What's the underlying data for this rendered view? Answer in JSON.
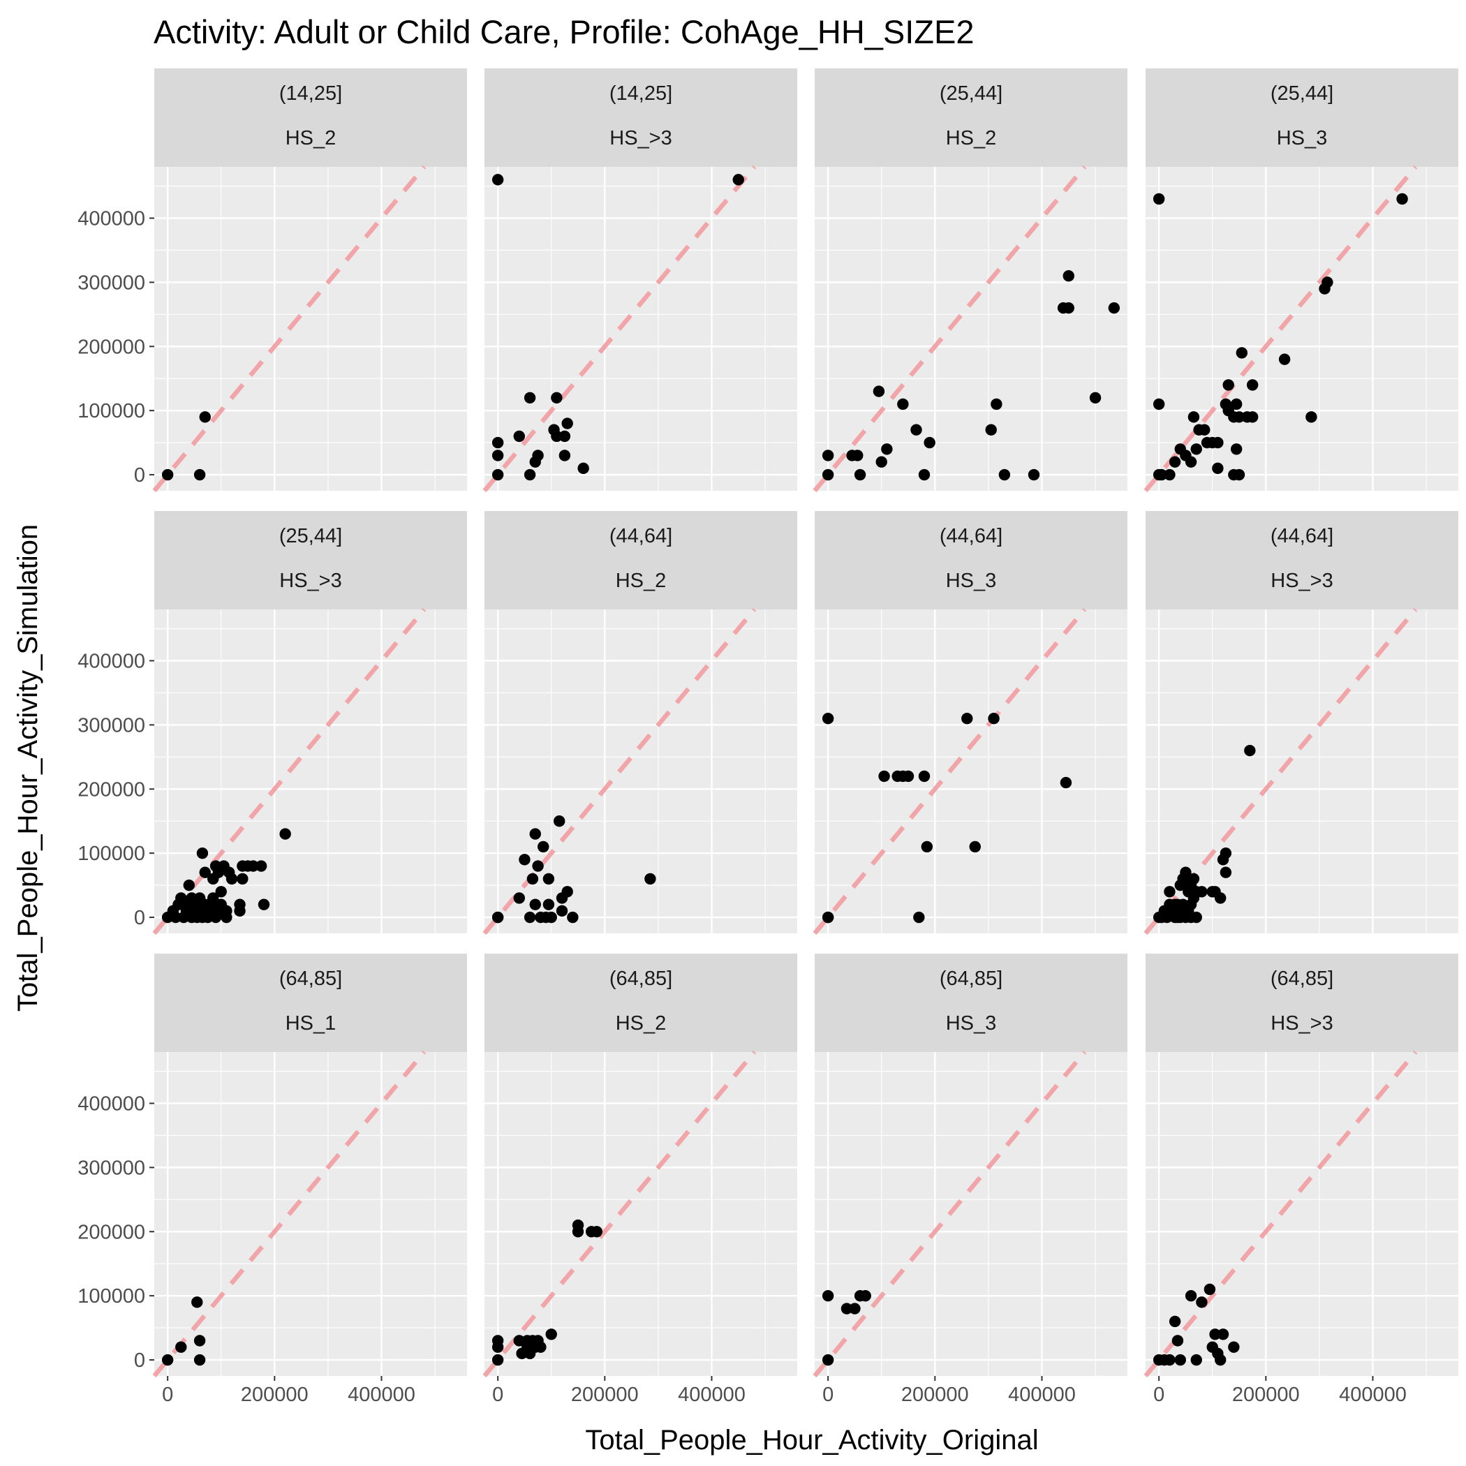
{
  "chart_data": {
    "type": "scatter",
    "title": "Activity: Adult or Child Care, Profile: CohAge_HH_SIZE2",
    "xlabel": "Total_People_Hour_Activity_Original",
    "ylabel": "Total_People_Hour_Activity_Simulation",
    "xlim": [
      -25000,
      560000
    ],
    "ylim": [
      -25000,
      480000
    ],
    "x_ticks": [
      0,
      200000,
      400000
    ],
    "x_tick_labels": [
      "0",
      "200000",
      "400000"
    ],
    "y_ticks": [
      0,
      100000,
      200000,
      300000,
      400000
    ],
    "y_tick_labels": [
      "0",
      "100000",
      "200000",
      "300000",
      "400000"
    ],
    "reference_line": "y = x",
    "reference_line_color": "#f1a5a8",
    "panel_background": "#ebebeb",
    "strip_background": "#d9d9d9",
    "point_color": "#000000",
    "grid": true,
    "legend": "none",
    "facets": [
      {
        "age": "(14,25]",
        "hh": "HS_2",
        "points": [
          [
            0,
            0
          ],
          [
            60000,
            0
          ],
          [
            70000,
            90000
          ]
        ]
      },
      {
        "age": "(14,25]",
        "hh": "HS_>3",
        "points": [
          [
            0,
            460000
          ],
          [
            450000,
            460000
          ],
          [
            0,
            50000
          ],
          [
            0,
            30000
          ],
          [
            0,
            0
          ],
          [
            40000,
            60000
          ],
          [
            60000,
            120000
          ],
          [
            110000,
            120000
          ],
          [
            60000,
            0
          ],
          [
            70000,
            20000
          ],
          [
            75000,
            30000
          ],
          [
            105000,
            70000
          ],
          [
            110000,
            60000
          ],
          [
            125000,
            60000
          ],
          [
            130000,
            80000
          ],
          [
            125000,
            30000
          ],
          [
            160000,
            10000
          ]
        ]
      },
      {
        "age": "(25,44]",
        "hh": "HS_2",
        "points": [
          [
            0,
            0
          ],
          [
            0,
            30000
          ],
          [
            45000,
            30000
          ],
          [
            55000,
            30000
          ],
          [
            60000,
            0
          ],
          [
            95000,
            130000
          ],
          [
            100000,
            20000
          ],
          [
            110000,
            40000
          ],
          [
            140000,
            110000
          ],
          [
            165000,
            70000
          ],
          [
            180000,
            0
          ],
          [
            190000,
            50000
          ],
          [
            305000,
            70000
          ],
          [
            315000,
            110000
          ],
          [
            330000,
            0
          ],
          [
            385000,
            0
          ],
          [
            440000,
            260000
          ],
          [
            450000,
            310000
          ],
          [
            450000,
            260000
          ],
          [
            500000,
            120000
          ],
          [
            535000,
            260000
          ]
        ]
      },
      {
        "age": "(25,44]",
        "hh": "HS_3",
        "points": [
          [
            0,
            430000
          ],
          [
            455000,
            430000
          ],
          [
            315000,
            300000
          ],
          [
            310000,
            290000
          ],
          [
            0,
            110000
          ],
          [
            0,
            0
          ],
          [
            5000,
            0
          ],
          [
            20000,
            0
          ],
          [
            30000,
            20000
          ],
          [
            40000,
            40000
          ],
          [
            50000,
            30000
          ],
          [
            60000,
            20000
          ],
          [
            65000,
            90000
          ],
          [
            70000,
            40000
          ],
          [
            75000,
            70000
          ],
          [
            85000,
            70000
          ],
          [
            90000,
            50000
          ],
          [
            100000,
            50000
          ],
          [
            110000,
            50000
          ],
          [
            110000,
            10000
          ],
          [
            125000,
            110000
          ],
          [
            130000,
            100000
          ],
          [
            130000,
            140000
          ],
          [
            140000,
            90000
          ],
          [
            140000,
            0
          ],
          [
            145000,
            40000
          ],
          [
            145000,
            110000
          ],
          [
            150000,
            0
          ],
          [
            150000,
            90000
          ],
          [
            155000,
            190000
          ],
          [
            165000,
            90000
          ],
          [
            175000,
            140000
          ],
          [
            175000,
            90000
          ],
          [
            235000,
            180000
          ],
          [
            285000,
            90000
          ]
        ]
      },
      {
        "age": "(25,44]",
        "hh": "HS_>3",
        "points": [
          [
            0,
            0
          ],
          [
            10000,
            10000
          ],
          [
            15000,
            0
          ],
          [
            20000,
            20000
          ],
          [
            25000,
            30000
          ],
          [
            30000,
            0
          ],
          [
            35000,
            10000
          ],
          [
            40000,
            20000
          ],
          [
            40000,
            50000
          ],
          [
            45000,
            30000
          ],
          [
            45000,
            0
          ],
          [
            50000,
            10000
          ],
          [
            55000,
            20000
          ],
          [
            55000,
            0
          ],
          [
            60000,
            30000
          ],
          [
            60000,
            10000
          ],
          [
            65000,
            0
          ],
          [
            65000,
            100000
          ],
          [
            70000,
            20000
          ],
          [
            70000,
            70000
          ],
          [
            75000,
            10000
          ],
          [
            75000,
            0
          ],
          [
            80000,
            20000
          ],
          [
            85000,
            60000
          ],
          [
            85000,
            30000
          ],
          [
            90000,
            80000
          ],
          [
            90000,
            0
          ],
          [
            95000,
            10000
          ],
          [
            95000,
            70000
          ],
          [
            100000,
            40000
          ],
          [
            100000,
            20000
          ],
          [
            105000,
            80000
          ],
          [
            110000,
            0
          ],
          [
            110000,
            10000
          ],
          [
            115000,
            70000
          ],
          [
            120000,
            60000
          ],
          [
            135000,
            20000
          ],
          [
            135000,
            10000
          ],
          [
            140000,
            80000
          ],
          [
            140000,
            60000
          ],
          [
            150000,
            80000
          ],
          [
            160000,
            80000
          ],
          [
            175000,
            80000
          ],
          [
            180000,
            20000
          ],
          [
            220000,
            130000
          ]
        ]
      },
      {
        "age": "(44,64]",
        "hh": "HS_2",
        "points": [
          [
            0,
            0
          ],
          [
            0,
            0
          ],
          [
            40000,
            30000
          ],
          [
            50000,
            90000
          ],
          [
            60000,
            0
          ],
          [
            65000,
            60000
          ],
          [
            70000,
            130000
          ],
          [
            70000,
            20000
          ],
          [
            75000,
            80000
          ],
          [
            80000,
            0
          ],
          [
            85000,
            110000
          ],
          [
            90000,
            0
          ],
          [
            95000,
            60000
          ],
          [
            95000,
            20000
          ],
          [
            100000,
            0
          ],
          [
            115000,
            150000
          ],
          [
            120000,
            10000
          ],
          [
            120000,
            30000
          ],
          [
            130000,
            40000
          ],
          [
            140000,
            0
          ],
          [
            285000,
            60000
          ]
        ]
      },
      {
        "age": "(44,64]",
        "hh": "HS_3",
        "points": [
          [
            0,
            310000
          ],
          [
            0,
            0
          ],
          [
            0,
            0
          ],
          [
            105000,
            220000
          ],
          [
            130000,
            220000
          ],
          [
            140000,
            220000
          ],
          [
            150000,
            220000
          ],
          [
            170000,
            0
          ],
          [
            180000,
            220000
          ],
          [
            185000,
            110000
          ],
          [
            260000,
            310000
          ],
          [
            275000,
            110000
          ],
          [
            310000,
            310000
          ],
          [
            445000,
            210000
          ]
        ]
      },
      {
        "age": "(44,64]",
        "hh": "HS_>3",
        "points": [
          [
            0,
            0
          ],
          [
            5000,
            0
          ],
          [
            10000,
            10000
          ],
          [
            15000,
            0
          ],
          [
            20000,
            20000
          ],
          [
            20000,
            40000
          ],
          [
            25000,
            10000
          ],
          [
            30000,
            0
          ],
          [
            30000,
            20000
          ],
          [
            35000,
            0
          ],
          [
            35000,
            20000
          ],
          [
            40000,
            0
          ],
          [
            40000,
            10000
          ],
          [
            40000,
            50000
          ],
          [
            45000,
            20000
          ],
          [
            45000,
            60000
          ],
          [
            50000,
            0
          ],
          [
            50000,
            70000
          ],
          [
            55000,
            10000
          ],
          [
            55000,
            40000
          ],
          [
            60000,
            20000
          ],
          [
            60000,
            50000
          ],
          [
            60000,
            0
          ],
          [
            65000,
            30000
          ],
          [
            65000,
            60000
          ],
          [
            70000,
            0
          ],
          [
            70000,
            40000
          ],
          [
            80000,
            40000
          ],
          [
            100000,
            40000
          ],
          [
            105000,
            40000
          ],
          [
            115000,
            30000
          ],
          [
            120000,
            90000
          ],
          [
            125000,
            100000
          ],
          [
            125000,
            70000
          ],
          [
            170000,
            260000
          ]
        ]
      },
      {
        "age": "(64,85]",
        "hh": "HS_1",
        "points": [
          [
            0,
            0
          ],
          [
            25000,
            20000
          ],
          [
            55000,
            90000
          ],
          [
            60000,
            0
          ],
          [
            60000,
            30000
          ]
        ]
      },
      {
        "age": "(64,85]",
        "hh": "HS_2",
        "points": [
          [
            0,
            0
          ],
          [
            0,
            20000
          ],
          [
            0,
            30000
          ],
          [
            40000,
            30000
          ],
          [
            45000,
            10000
          ],
          [
            55000,
            20000
          ],
          [
            55000,
            30000
          ],
          [
            60000,
            10000
          ],
          [
            65000,
            30000
          ],
          [
            70000,
            20000
          ],
          [
            75000,
            30000
          ],
          [
            80000,
            20000
          ],
          [
            100000,
            40000
          ],
          [
            150000,
            200000
          ],
          [
            150000,
            210000
          ],
          [
            175000,
            200000
          ],
          [
            185000,
            200000
          ]
        ]
      },
      {
        "age": "(64,85]",
        "hh": "HS_3",
        "points": [
          [
            0,
            0
          ],
          [
            0,
            100000
          ],
          [
            35000,
            80000
          ],
          [
            50000,
            80000
          ],
          [
            60000,
            100000
          ],
          [
            70000,
            100000
          ]
        ]
      },
      {
        "age": "(64,85]",
        "hh": "HS_>3",
        "points": [
          [
            0,
            0
          ],
          [
            10000,
            0
          ],
          [
            20000,
            0
          ],
          [
            30000,
            60000
          ],
          [
            35000,
            30000
          ],
          [
            40000,
            0
          ],
          [
            60000,
            100000
          ],
          [
            70000,
            0
          ],
          [
            80000,
            90000
          ],
          [
            95000,
            110000
          ],
          [
            100000,
            20000
          ],
          [
            105000,
            40000
          ],
          [
            110000,
            10000
          ],
          [
            115000,
            0
          ],
          [
            120000,
            40000
          ],
          [
            140000,
            20000
          ]
        ]
      }
    ]
  }
}
